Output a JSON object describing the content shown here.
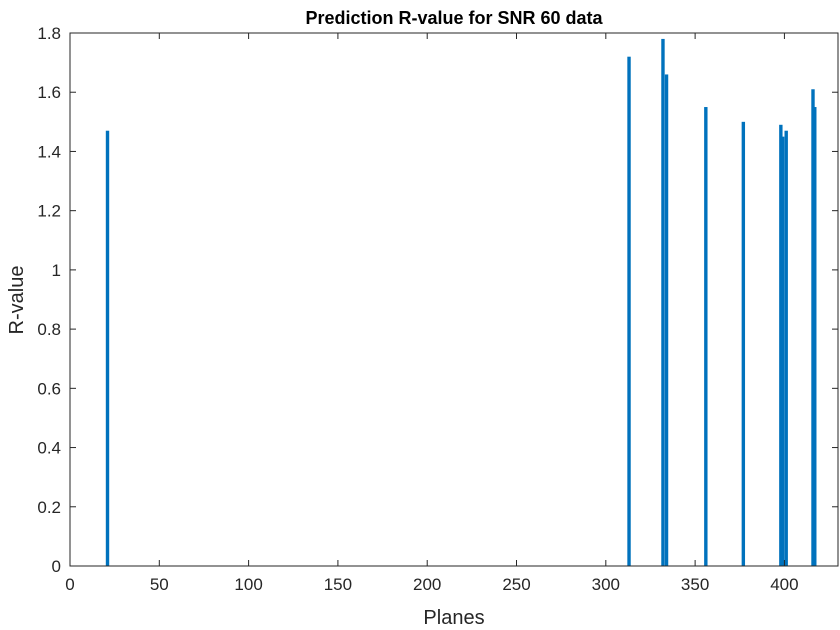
{
  "chart_data": {
    "type": "bar",
    "title": "Prediction R-value for SNR 60 data",
    "xlabel": "Planes",
    "ylabel": "R-value",
    "xlim": [
      0,
      430
    ],
    "ylim": [
      0,
      1.8
    ],
    "xticks": [
      "0",
      "50",
      "100",
      "150",
      "200",
      "250",
      "300",
      "350",
      "400"
    ],
    "yticks": [
      "0",
      "0.2",
      "0.4",
      "0.6",
      "0.8",
      "1",
      "1.2",
      "1.4",
      "1.6",
      "1.8"
    ],
    "grid": false,
    "bar_color": "#0072BD",
    "points": [
      {
        "x": 21,
        "y": 1.47
      },
      {
        "x": 313,
        "y": 1.72
      },
      {
        "x": 332,
        "y": 1.78
      },
      {
        "x": 334,
        "y": 1.66
      },
      {
        "x": 356,
        "y": 1.55
      },
      {
        "x": 377,
        "y": 1.5
      },
      {
        "x": 398,
        "y": 1.49
      },
      {
        "x": 399,
        "y": 1.45
      },
      {
        "x": 401,
        "y": 1.47
      },
      {
        "x": 416,
        "y": 1.61
      },
      {
        "x": 417,
        "y": 1.55
      }
    ]
  }
}
